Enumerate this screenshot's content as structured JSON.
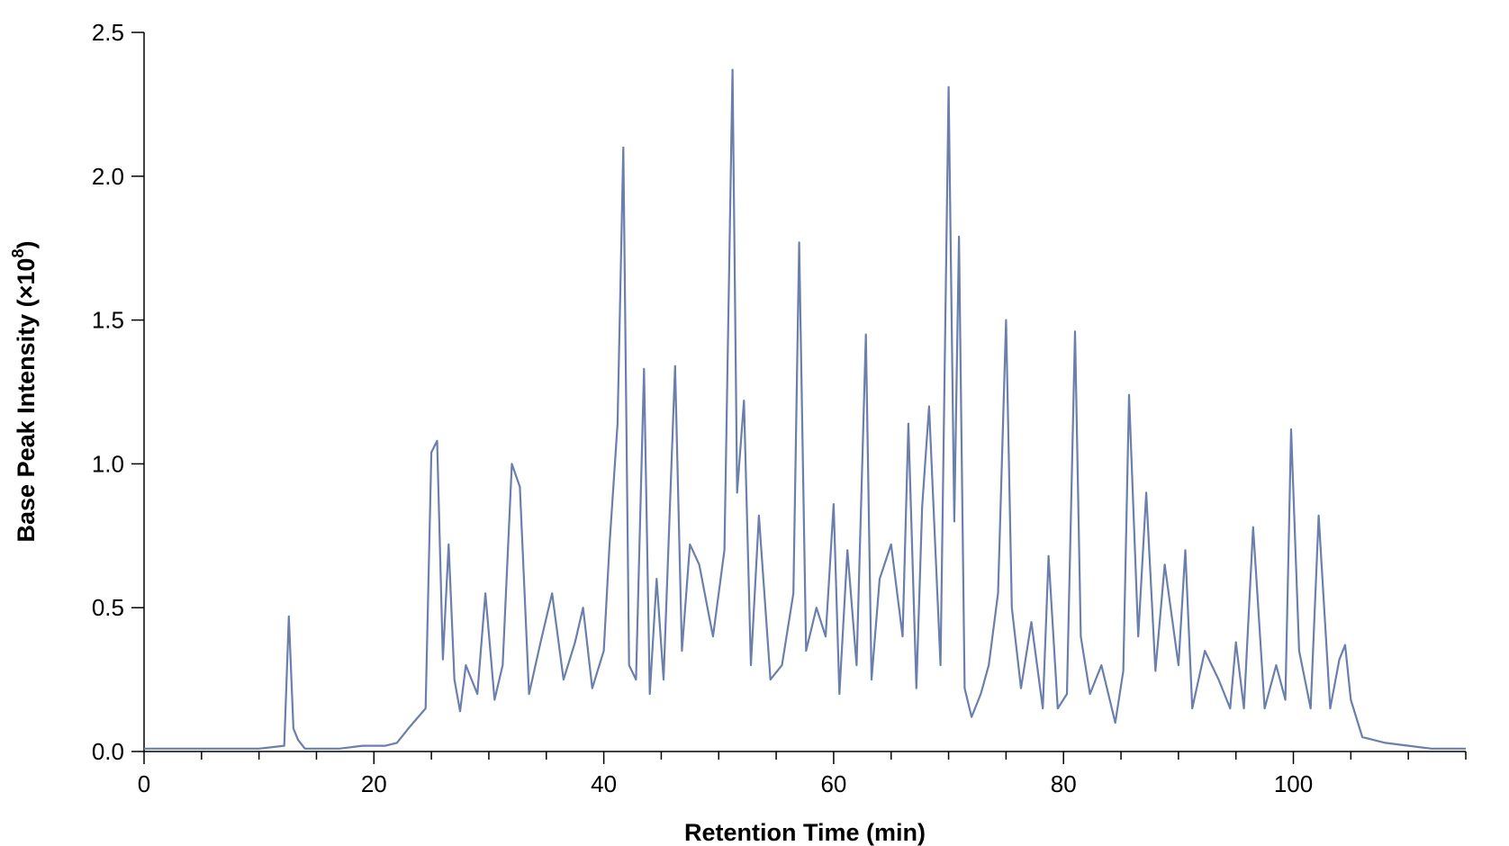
{
  "chart_data": {
    "type": "line",
    "title": "",
    "xlabel": "Retention Time (min)",
    "ylabel_main": "Base Peak Intensity (×10",
    "ylabel_exp": "8",
    "ylabel_close": ")",
    "xlim": [
      0,
      115
    ],
    "ylim": [
      0,
      2.5
    ],
    "xticks": [
      0,
      20,
      40,
      60,
      80,
      100
    ],
    "xtick_labels": [
      "0",
      "20",
      "40",
      "60",
      "80",
      "100"
    ],
    "x_minor_step": 5,
    "yticks": [
      0,
      0.5,
      1.0,
      1.5,
      2.0,
      2.5
    ],
    "ytick_labels": [
      "0.0",
      "0.5",
      "1.0",
      "1.5",
      "2.0",
      "2.5"
    ],
    "grid": false,
    "legend": "none",
    "series": [
      {
        "color": "#6a7fac",
        "x": [
          0,
          5,
          10,
          12.2,
          12.6,
          13.0,
          13.4,
          14,
          15,
          17,
          19,
          21,
          22,
          23,
          24.5,
          25.0,
          25.5,
          26.0,
          26.5,
          27.0,
          27.5,
          28.0,
          29.0,
          29.7,
          30.5,
          31.2,
          32.0,
          32.7,
          33.5,
          34.5,
          35.5,
          36.5,
          37.5,
          38.2,
          39.0,
          40.0,
          40.5,
          41.2,
          41.7,
          42.2,
          42.8,
          43.5,
          44.0,
          44.6,
          45.2,
          46.2,
          46.8,
          47.5,
          48.3,
          49.5,
          50.5,
          51.2,
          51.6,
          52.2,
          52.8,
          53.5,
          54.5,
          55.5,
          56.5,
          57.0,
          57.6,
          58.5,
          59.3,
          60.0,
          60.5,
          61.2,
          62.0,
          62.8,
          63.3,
          64.0,
          65.0,
          66.0,
          66.5,
          67.2,
          67.7,
          68.3,
          69.3,
          70.0,
          70.5,
          70.9,
          71.4,
          72.0,
          72.8,
          73.5,
          74.3,
          75.0,
          75.5,
          76.3,
          77.2,
          78.2,
          78.7,
          79.5,
          80.3,
          81.0,
          81.5,
          82.3,
          83.3,
          84.5,
          85.2,
          85.7,
          86.5,
          87.2,
          88.0,
          88.8,
          90.0,
          90.6,
          91.2,
          92.3,
          93.5,
          94.5,
          95.0,
          95.7,
          96.5,
          97.5,
          98.5,
          99.3,
          99.8,
          100.5,
          101.5,
          102.2,
          103.2,
          104.0,
          104.5,
          105.0,
          106,
          108,
          110,
          112,
          115
        ],
        "y": [
          0.01,
          0.01,
          0.01,
          0.02,
          0.47,
          0.08,
          0.04,
          0.01,
          0.01,
          0.01,
          0.02,
          0.02,
          0.03,
          0.08,
          0.15,
          1.04,
          1.08,
          0.32,
          0.72,
          0.25,
          0.14,
          0.3,
          0.2,
          0.55,
          0.18,
          0.3,
          1.0,
          0.92,
          0.2,
          0.38,
          0.55,
          0.25,
          0.38,
          0.5,
          0.22,
          0.35,
          0.72,
          1.14,
          2.1,
          0.3,
          0.25,
          1.33,
          0.2,
          0.6,
          0.25,
          1.34,
          0.35,
          0.72,
          0.65,
          0.4,
          0.7,
          2.37,
          0.9,
          1.22,
          0.3,
          0.82,
          0.25,
          0.3,
          0.55,
          1.77,
          0.35,
          0.5,
          0.4,
          0.86,
          0.2,
          0.7,
          0.3,
          1.45,
          0.25,
          0.6,
          0.72,
          0.4,
          1.14,
          0.22,
          0.85,
          1.2,
          0.3,
          2.31,
          0.8,
          1.79,
          0.22,
          0.12,
          0.2,
          0.3,
          0.55,
          1.5,
          0.5,
          0.22,
          0.45,
          0.15,
          0.68,
          0.15,
          0.2,
          1.46,
          0.4,
          0.2,
          0.3,
          0.1,
          0.28,
          1.24,
          0.4,
          0.9,
          0.28,
          0.65,
          0.3,
          0.7,
          0.15,
          0.35,
          0.25,
          0.15,
          0.38,
          0.15,
          0.78,
          0.15,
          0.3,
          0.18,
          1.12,
          0.35,
          0.15,
          0.82,
          0.15,
          0.32,
          0.37,
          0.18,
          0.05,
          0.03,
          0.02,
          0.01,
          0.01
        ]
      }
    ]
  }
}
